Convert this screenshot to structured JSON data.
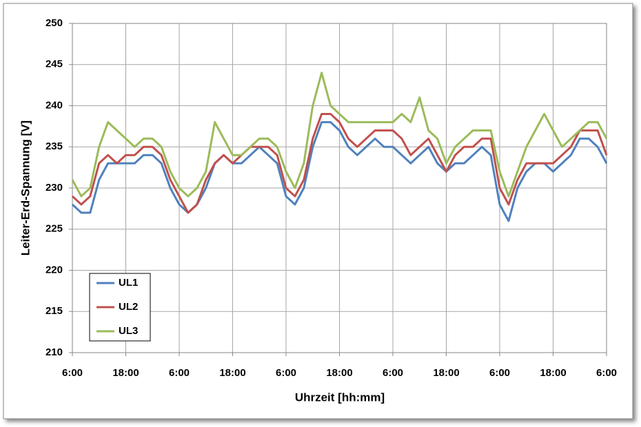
{
  "chart_data": {
    "type": "line",
    "xlabel": "Uhrzeit [hh:mm]",
    "ylabel": "Leiter-Erd-Spannung  [V]",
    "x": [
      0,
      2,
      4,
      6,
      8,
      10,
      12,
      14,
      16,
      18,
      20,
      22,
      24,
      26,
      28,
      30,
      32,
      34,
      36,
      38,
      40,
      42,
      44,
      46,
      48,
      50,
      52,
      54,
      56,
      58,
      60,
      62,
      64,
      66,
      68,
      70,
      72,
      74,
      76,
      78,
      80,
      82,
      84,
      86,
      88,
      90,
      92,
      94,
      96,
      98,
      100,
      102,
      104,
      106,
      108,
      110,
      112,
      114,
      116,
      118,
      120
    ],
    "series": [
      {
        "name": "UL1",
        "color": "#4f81bd",
        "values": [
          228,
          227,
          227,
          231,
          233,
          233,
          233,
          233,
          234,
          234,
          233,
          230,
          228,
          227,
          228,
          230,
          233,
          234,
          233,
          233,
          234,
          235,
          234,
          233,
          229,
          228,
          230,
          235,
          238,
          238,
          237,
          235,
          234,
          235,
          236,
          235,
          235,
          234,
          233,
          234,
          235,
          233,
          232,
          233,
          233,
          234,
          235,
          234,
          228,
          226,
          230,
          232,
          233,
          233,
          232,
          233,
          234,
          236,
          236,
          235,
          233
        ]
      },
      {
        "name": "UL2",
        "color": "#c0504d",
        "values": [
          229,
          228,
          229,
          233,
          234,
          233,
          234,
          234,
          235,
          235,
          234,
          231,
          229,
          227,
          228,
          231,
          233,
          234,
          233,
          234,
          235,
          235,
          235,
          234,
          230,
          229,
          231,
          236,
          239,
          239,
          238,
          236,
          235,
          236,
          237,
          237,
          237,
          236,
          234,
          235,
          236,
          234,
          232,
          234,
          235,
          235,
          236,
          236,
          230,
          228,
          231,
          233,
          233,
          233,
          233,
          234,
          235,
          237,
          237,
          237,
          234
        ]
      },
      {
        "name": "UL3",
        "color": "#9bbb59",
        "values": [
          231,
          229,
          230,
          235,
          238,
          237,
          236,
          235,
          236,
          236,
          235,
          232,
          230,
          229,
          230,
          232,
          238,
          236,
          234,
          234,
          235,
          236,
          236,
          235,
          232,
          230,
          233,
          240,
          244,
          240,
          239,
          238,
          238,
          238,
          238,
          238,
          238,
          239,
          238,
          241,
          237,
          236,
          233,
          235,
          236,
          237,
          237,
          237,
          232,
          229,
          232,
          235,
          237,
          239,
          237,
          235,
          236,
          237,
          238,
          238,
          236
        ]
      }
    ],
    "xlim": [
      0,
      120
    ],
    "xticks": [
      {
        "value": 0,
        "label": "6:00"
      },
      {
        "value": 12,
        "label": "18:00"
      },
      {
        "value": 24,
        "label": "6:00"
      },
      {
        "value": 36,
        "label": "18:00"
      },
      {
        "value": 48,
        "label": "6:00"
      },
      {
        "value": 60,
        "label": "18:00"
      },
      {
        "value": 72,
        "label": "6:00"
      },
      {
        "value": 84,
        "label": "18:00"
      },
      {
        "value": 96,
        "label": "6:00"
      },
      {
        "value": 108,
        "label": "18:00"
      },
      {
        "value": 120,
        "label": "6:00"
      }
    ],
    "ylim": [
      210,
      250
    ],
    "yticks": [
      210,
      215,
      220,
      225,
      230,
      235,
      240,
      245,
      250
    ],
    "grid": true,
    "legend": "lower left"
  }
}
